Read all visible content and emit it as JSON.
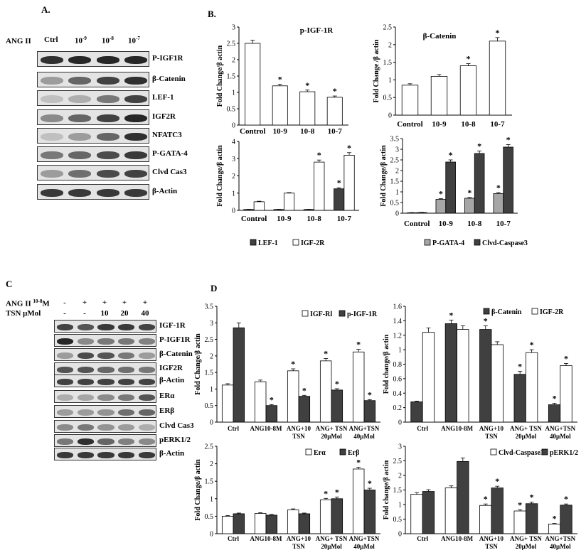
{
  "panels": {
    "A": {
      "letter": "A.",
      "condition_label": "ANG II",
      "lanes": [
        {
          "text": "Ctrl"
        },
        {
          "text": "10",
          "sup": "-9"
        },
        {
          "text": "10",
          "sup": "-8"
        },
        {
          "text": "10",
          "sup": "-7"
        }
      ],
      "blots": [
        "P-IGF1R",
        "β-Catenin",
        "LEF-1",
        "IGF2R",
        "NFATC3",
        "P-GATA-4",
        "Clvd Cas3",
        "β-Actin"
      ]
    },
    "B": {
      "letter": "B."
    },
    "C": {
      "letter": "C",
      "row1": {
        "label_base": "ANG II ",
        "label_sup": "10-8",
        "label_end": "M",
        "values": [
          "-",
          "+",
          "+",
          "+",
          "+"
        ]
      },
      "row2": {
        "label": "TSN μMol",
        "values": [
          "-",
          "-",
          "10",
          "20",
          "40"
        ]
      },
      "blots": [
        "IGF-1R",
        "P-IGF1R",
        "β-Catenin",
        "IGF2R",
        "β-Actin",
        "ERα",
        "ERβ",
        "Clvd Cas3",
        "pERK1/2",
        "β-Actin"
      ]
    },
    "D": {
      "letter": "D"
    }
  },
  "colors": {
    "dark_bar": "#404040",
    "gray_bar": "#a6a6a6",
    "white_bar": "#ffffff",
    "outline": "#000000"
  },
  "chart_data": [
    {
      "id": "B1",
      "type": "bar",
      "title": "p-IGF-1R",
      "ylabel": "Fold Change/β actin",
      "categories": [
        "Control",
        "10-9",
        "10-8",
        "10-7"
      ],
      "ylim": [
        0,
        3
      ],
      "ystep": 0.5,
      "series": [
        {
          "values": [
            2.5,
            1.2,
            1.02,
            0.85
          ],
          "errors": [
            0.1,
            0.05,
            0.05,
            0.04
          ],
          "stars": [
            false,
            true,
            true,
            true
          ],
          "color": "white"
        }
      ]
    },
    {
      "id": "B2",
      "type": "bar",
      "title": "β-Catenin",
      "ylabel": "Fold Change /β actin",
      "categories": [
        "Control",
        "10-9",
        "10-8",
        "10-7"
      ],
      "ylim": [
        0,
        2.5
      ],
      "ystep": 0.5,
      "series": [
        {
          "values": [
            0.85,
            1.1,
            1.4,
            2.1
          ],
          "errors": [
            0.04,
            0.05,
            0.06,
            0.1
          ],
          "stars": [
            false,
            false,
            true,
            true
          ],
          "color": "white"
        }
      ]
    },
    {
      "id": "B3",
      "type": "bar",
      "ylabel": "Fold Change/β actin",
      "categories": [
        "Control",
        "10-9",
        "10-8",
        "10-7"
      ],
      "ylim": [
        0,
        4
      ],
      "ystep": 1,
      "series": [
        {
          "name": "LEF-1",
          "values": [
            0.05,
            0.05,
            0.05,
            1.25
          ],
          "errors": [
            0.01,
            0.01,
            0.01,
            0.06
          ],
          "stars": [
            false,
            false,
            false,
            true
          ],
          "color": "dark"
        },
        {
          "name": "IGF-2R",
          "values": [
            0.5,
            1.0,
            2.8,
            3.2
          ],
          "errors": [
            0.03,
            0.03,
            0.12,
            0.15
          ],
          "stars": [
            false,
            false,
            true,
            true
          ],
          "color": "white"
        }
      ]
    },
    {
      "id": "B4",
      "type": "bar",
      "ylabel": "Fold Change/β actin",
      "categories": [
        "Control",
        "10-9",
        "10-8",
        "10-7"
      ],
      "ylim": [
        0,
        3.5
      ],
      "ystep": 0.5,
      "series": [
        {
          "name": "P-GATA-4",
          "values": [
            0.02,
            0.65,
            0.7,
            0.92
          ],
          "errors": [
            0.01,
            0.03,
            0.04,
            0.05
          ],
          "stars": [
            false,
            true,
            true,
            true
          ],
          "color": "gray"
        },
        {
          "name": "Clvd-Caspase3",
          "values": [
            0.03,
            2.4,
            2.8,
            3.1
          ],
          "errors": [
            0.01,
            0.1,
            0.12,
            0.12
          ],
          "stars": [
            false,
            true,
            true,
            true
          ],
          "color": "dark"
        }
      ]
    },
    {
      "id": "D1",
      "type": "bar",
      "ylabel": "Fold Change/β actin",
      "categories": [
        [
          "Ctrl"
        ],
        [
          "ANG10-8M"
        ],
        [
          "ANG+10",
          "TSN"
        ],
        [
          "ANG+ TSN",
          "20μMol"
        ],
        [
          "ANG+TSN",
          "40μMol"
        ]
      ],
      "ylim": [
        0,
        3.5
      ],
      "ystep": 0.5,
      "series": [
        {
          "name": "IGF-Rl",
          "values": [
            1.12,
            1.22,
            1.55,
            1.85,
            2.12
          ],
          "errors": [
            0.04,
            0.05,
            0.06,
            0.07,
            0.08
          ],
          "stars": [
            false,
            false,
            true,
            true,
            true
          ],
          "color": "white"
        },
        {
          "name": "p-IGF-1R",
          "values": [
            2.85,
            0.5,
            0.78,
            0.97,
            0.65
          ],
          "errors": [
            0.15,
            0.03,
            0.03,
            0.04,
            0.03
          ],
          "stars": [
            false,
            true,
            true,
            true,
            true
          ],
          "color": "dark"
        }
      ]
    },
    {
      "id": "D2",
      "type": "bar",
      "ylabel": "Fold change/β actin",
      "categories": [
        [
          "Ctrl"
        ],
        [
          "ANG10-8M"
        ],
        [
          "ANG+10",
          "TSN"
        ],
        [
          "ANG+ TSN",
          "20μMol"
        ],
        [
          "ANG+TSN",
          "40μMol"
        ]
      ],
      "ylim": [
        0,
        1.6
      ],
      "ystep": 0.2,
      "series": [
        {
          "name": "β-Catenin",
          "values": [
            0.28,
            1.36,
            1.28,
            0.66,
            0.24
          ],
          "errors": [
            0.01,
            0.05,
            0.05,
            0.04,
            0.02
          ],
          "stars": [
            false,
            true,
            true,
            true,
            true
          ],
          "color": "dark"
        },
        {
          "name": "IGF-2R",
          "values": [
            1.24,
            1.28,
            1.07,
            0.96,
            0.78
          ],
          "errors": [
            0.06,
            0.05,
            0.04,
            0.04,
            0.03
          ],
          "stars": [
            false,
            false,
            false,
            true,
            true
          ],
          "color": "white"
        }
      ]
    },
    {
      "id": "D3",
      "type": "bar",
      "ylabel": "Fold Change/β actin",
      "categories": [
        [
          "Ctrl"
        ],
        [
          "ANG10-8M"
        ],
        [
          "ANG+10",
          "TSN"
        ],
        [
          "ANG+ TSN",
          "20μMol"
        ],
        [
          "ANG+TSN",
          "40μMol"
        ]
      ],
      "ylim": [
        0,
        2.5
      ],
      "ystep": 0.5,
      "series": [
        {
          "name": "Erα",
          "values": [
            0.5,
            0.58,
            0.68,
            0.97,
            1.85
          ],
          "errors": [
            0.02,
            0.02,
            0.03,
            0.04,
            0.05
          ],
          "stars": [
            false,
            false,
            false,
            true,
            true
          ],
          "color": "white"
        },
        {
          "name": "Erβ",
          "values": [
            0.57,
            0.53,
            0.57,
            1.0,
            1.25
          ],
          "errors": [
            0.02,
            0.02,
            0.02,
            0.05,
            0.05
          ],
          "stars": [
            false,
            false,
            false,
            true,
            true
          ],
          "color": "dark"
        }
      ]
    },
    {
      "id": "D4",
      "type": "bar",
      "ylabel": "Fold change/β actin",
      "categories": [
        [
          "Ctrl"
        ],
        [
          "ANG10-8M"
        ],
        [
          "ANG+10",
          "TSN"
        ],
        [
          "ANG+ TSN",
          "20μMol"
        ],
        [
          "ANG+TSN",
          "40μMol"
        ]
      ],
      "ylim": [
        0,
        3
      ],
      "ystep": 0.5,
      "series": [
        {
          "name": "Clvd-Caspase3",
          "values": [
            1.35,
            1.57,
            0.97,
            0.78,
            0.33
          ],
          "errors": [
            0.06,
            0.07,
            0.05,
            0.04,
            0.02
          ],
          "stars": [
            false,
            false,
            true,
            true,
            true
          ],
          "color": "white"
        },
        {
          "name": "pERK1/2",
          "values": [
            1.45,
            2.48,
            1.57,
            1.03,
            0.98
          ],
          "errors": [
            0.06,
            0.12,
            0.06,
            0.05,
            0.04
          ],
          "stars": [
            false,
            false,
            true,
            true,
            true
          ],
          "color": "dark"
        }
      ]
    }
  ]
}
